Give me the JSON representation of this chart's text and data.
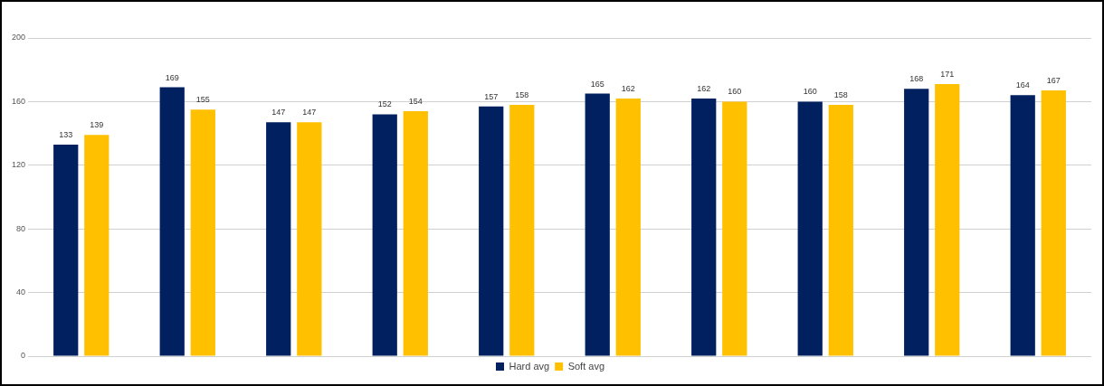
{
  "chart_data": {
    "type": "bar",
    "categories": [
      null,
      null,
      null,
      null,
      null,
      null,
      null,
      null,
      null,
      null
    ],
    "series": [
      {
        "name": "Hard avg",
        "color": "#002060",
        "values": [
          133,
          169,
          147,
          152,
          157,
          165,
          162,
          160,
          168,
          164
        ]
      },
      {
        "name": "Soft avg",
        "color": "#ffc000",
        "values": [
          139,
          155,
          147,
          154,
          158,
          162,
          160,
          158,
          171,
          167
        ]
      }
    ],
    "ylim": [
      0,
      200
    ],
    "yticks": [
      0,
      40,
      80,
      120,
      160,
      200
    ],
    "grid": "y",
    "legend": "bottom",
    "tick_labels": "y",
    "data_labels": true
  }
}
